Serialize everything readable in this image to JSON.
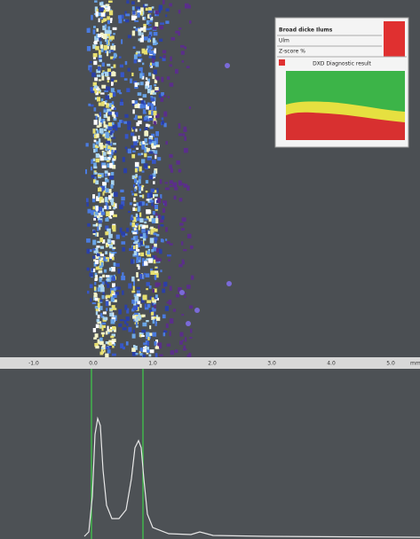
{
  "ruler": {
    "labels": [
      "-1.0",
      "0.0",
      "1.0",
      "2.0",
      "3.0",
      "4.0",
      "5.0"
    ],
    "unit": "mm"
  },
  "inset": {
    "lines": [
      "Broad dicke Ilums",
      "Ulm",
      "Z-score %"
    ],
    "chart_title": "DXD Diagnostic result"
  }
}
